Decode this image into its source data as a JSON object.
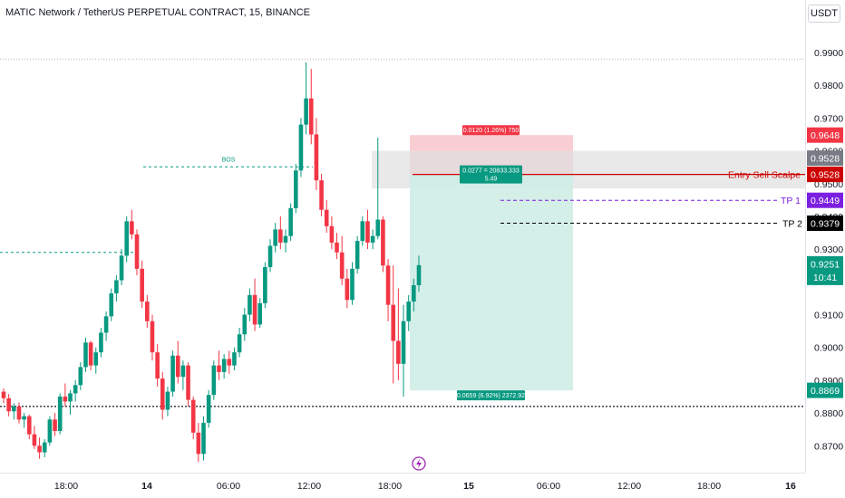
{
  "header": {
    "title": "MATIC Network / TetherUS PERPETUAL CONTRACT, 15, BINANCE"
  },
  "currency_button": "USDT",
  "colors": {
    "up": "#089981",
    "down": "#f23645",
    "entry": "#cc0000",
    "tp1": "#7b1fe0",
    "tp2": "#000000",
    "stop_zone": "#f8c6ca",
    "profit_zone": "#cfece6",
    "supply_zone": "#e0e0e0"
  },
  "chart_data": {
    "type": "candlestick",
    "symbol": "MATIC Network / TetherUS PERPETUAL CONTRACT",
    "interval": "15",
    "exchange": "BINANCE",
    "ylim": [
      0.8625,
      0.995
    ],
    "y_ticks": [
      "0.9900",
      "0.9800",
      "0.9700",
      "0.9600",
      "0.9500",
      "0.9400",
      "0.9300",
      "0.9100",
      "0.9000",
      "0.8900",
      "0.8800",
      "0.8700"
    ],
    "x_ticks": [
      "18:00",
      "14",
      "06:00",
      "12:00",
      "18:00",
      "15",
      "06:00",
      "12:00",
      "18:00",
      "16"
    ],
    "price_tags": [
      {
        "label": "0.9648",
        "kind": "stop"
      },
      {
        "label": "0.9528",
        "kind": "zone"
      },
      {
        "label": "0.9528",
        "kind": "entry"
      },
      {
        "label": "0.9449",
        "kind": "tp1"
      },
      {
        "label": "0.9379",
        "kind": "tp2"
      },
      {
        "label": "0.9251",
        "kind": "last",
        "countdown": "10:41"
      },
      {
        "label": "0.8869",
        "kind": "target"
      }
    ],
    "annotations": {
      "bos": "BOS",
      "entry": "Entry Sell Scalpe",
      "tp1": "TP 1",
      "tp2": "TP 2",
      "stop_box": "0.0120 (1.26%) 750",
      "entry_box_line1": "0.0277 = 20833.333",
      "entry_box_line2": "5.49",
      "target_box": "0.0659 (6.92%) 2372.92"
    },
    "levels": {
      "recent_high": 0.988,
      "bos": 0.9551,
      "left_dash": 0.929,
      "stop": 0.9648,
      "zone_top": 0.96,
      "entry": 0.9528,
      "zone_bottom": 0.9485,
      "tp1": 0.9449,
      "tp2": 0.9379,
      "target": 0.8869,
      "support": 0.882
    },
    "candles": [
      [
        0.8865,
        0.8875,
        0.883,
        0.8845
      ],
      [
        0.8845,
        0.8858,
        0.879,
        0.8805
      ],
      [
        0.8805,
        0.883,
        0.878,
        0.882
      ],
      [
        0.882,
        0.8832,
        0.8768,
        0.878
      ],
      [
        0.878,
        0.88,
        0.8755,
        0.879
      ],
      [
        0.879,
        0.8795,
        0.872,
        0.8735
      ],
      [
        0.8735,
        0.876,
        0.869,
        0.87
      ],
      [
        0.87,
        0.8725,
        0.866,
        0.868
      ],
      [
        0.868,
        0.872,
        0.8665,
        0.871
      ],
      [
        0.871,
        0.879,
        0.87,
        0.878
      ],
      [
        0.878,
        0.88,
        0.873,
        0.8745
      ],
      [
        0.8745,
        0.886,
        0.8735,
        0.885
      ],
      [
        0.885,
        0.889,
        0.882,
        0.8835
      ],
      [
        0.8835,
        0.887,
        0.8795,
        0.886
      ],
      [
        0.886,
        0.89,
        0.8835,
        0.8885
      ],
      [
        0.8885,
        0.8955,
        0.887,
        0.894
      ],
      [
        0.894,
        0.903,
        0.8925,
        0.9015
      ],
      [
        0.9015,
        0.902,
        0.893,
        0.8945
      ],
      [
        0.8945,
        0.9,
        0.892,
        0.8985
      ],
      [
        0.8985,
        0.906,
        0.897,
        0.9045
      ],
      [
        0.9045,
        0.911,
        0.902,
        0.9095
      ],
      [
        0.9095,
        0.918,
        0.908,
        0.9165
      ],
      [
        0.9165,
        0.922,
        0.914,
        0.9205
      ],
      [
        0.9205,
        0.93,
        0.919,
        0.928
      ],
      [
        0.928,
        0.94,
        0.926,
        0.9385
      ],
      [
        0.9385,
        0.942,
        0.933,
        0.9345
      ],
      [
        0.9345,
        0.936,
        0.922,
        0.924
      ],
      [
        0.924,
        0.9265,
        0.912,
        0.914
      ],
      [
        0.914,
        0.916,
        0.906,
        0.908
      ],
      [
        0.908,
        0.91,
        0.896,
        0.8985
      ],
      [
        0.8985,
        0.901,
        0.888,
        0.8905
      ],
      [
        0.8905,
        0.8925,
        0.878,
        0.881
      ],
      [
        0.881,
        0.888,
        0.879,
        0.8865
      ],
      [
        0.8865,
        0.899,
        0.885,
        0.8975
      ],
      [
        0.8975,
        0.902,
        0.889,
        0.891
      ],
      [
        0.891,
        0.896,
        0.887,
        0.8945
      ],
      [
        0.8945,
        0.8955,
        0.882,
        0.884
      ],
      [
        0.884,
        0.885,
        0.872,
        0.874
      ],
      [
        0.874,
        0.877,
        0.865,
        0.8675
      ],
      [
        0.8675,
        0.879,
        0.8655,
        0.877
      ],
      [
        0.877,
        0.887,
        0.8755,
        0.8855
      ],
      [
        0.8855,
        0.896,
        0.884,
        0.8945
      ],
      [
        0.8945,
        0.899,
        0.89,
        0.8925
      ],
      [
        0.8925,
        0.898,
        0.8905,
        0.8965
      ],
      [
        0.8965,
        0.899,
        0.892,
        0.8945
      ],
      [
        0.8945,
        0.9,
        0.893,
        0.8985
      ],
      [
        0.8985,
        0.906,
        0.897,
        0.904
      ],
      [
        0.904,
        0.912,
        0.902,
        0.91
      ],
      [
        0.91,
        0.918,
        0.908,
        0.916
      ],
      [
        0.916,
        0.921,
        0.905,
        0.907
      ],
      [
        0.907,
        0.915,
        0.906,
        0.9135
      ],
      [
        0.9135,
        0.926,
        0.912,
        0.9245
      ],
      [
        0.9245,
        0.933,
        0.923,
        0.931
      ],
      [
        0.931,
        0.938,
        0.929,
        0.936
      ],
      [
        0.936,
        0.94,
        0.93,
        0.932
      ],
      [
        0.932,
        0.936,
        0.929,
        0.934
      ],
      [
        0.934,
        0.944,
        0.9325,
        0.9425
      ],
      [
        0.9425,
        0.956,
        0.941,
        0.954
      ],
      [
        0.954,
        0.97,
        0.952,
        0.968
      ],
      [
        0.968,
        0.987,
        0.965,
        0.976
      ],
      [
        0.976,
        0.985,
        0.962,
        0.965
      ],
      [
        0.965,
        0.97,
        0.948,
        0.951
      ],
      [
        0.951,
        0.953,
        0.94,
        0.942
      ],
      [
        0.942,
        0.945,
        0.935,
        0.937
      ],
      [
        0.937,
        0.94,
        0.93,
        0.932
      ],
      [
        0.932,
        0.935,
        0.927,
        0.929
      ],
      [
        0.929,
        0.934,
        0.919,
        0.921
      ],
      [
        0.921,
        0.924,
        0.912,
        0.9145
      ],
      [
        0.9145,
        0.926,
        0.913,
        0.924
      ],
      [
        0.924,
        0.934,
        0.9225,
        0.9325
      ],
      [
        0.9325,
        0.94,
        0.931,
        0.9385
      ],
      [
        0.9385,
        0.942,
        0.93,
        0.932
      ],
      [
        0.932,
        0.936,
        0.93,
        0.934
      ],
      [
        0.934,
        0.964,
        0.933,
        0.939
      ],
      [
        0.939,
        0.94,
        0.923,
        0.925
      ],
      [
        0.925,
        0.927,
        0.908,
        0.913
      ],
      [
        0.913,
        0.925,
        0.889,
        0.902
      ],
      [
        0.902,
        0.918,
        0.89,
        0.895
      ],
      [
        0.895,
        0.913,
        0.885,
        0.908
      ],
      [
        0.908,
        0.916,
        0.905,
        0.914
      ],
      [
        0.914,
        0.921,
        0.911,
        0.919
      ],
      [
        0.919,
        0.928,
        0.917,
        0.9251
      ]
    ]
  }
}
